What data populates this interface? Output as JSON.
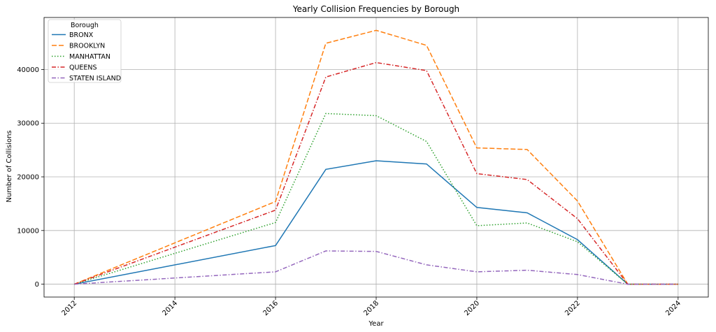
{
  "chart_data": {
    "type": "line",
    "title": "Yearly Collision Frequencies by Borough",
    "xlabel": "Year",
    "ylabel": "Number of Collisions",
    "xlim": [
      2011.4,
      2024.6
    ],
    "ylim": [
      -2400,
      49700
    ],
    "x_ticks": [
      2012,
      2014,
      2016,
      2018,
      2020,
      2022,
      2024
    ],
    "y_ticks": [
      0,
      10000,
      20000,
      30000,
      40000
    ],
    "x_tick_rotation": 45,
    "grid": true,
    "legend": {
      "title": "Borough",
      "placement": "top-left"
    },
    "x": [
      2012,
      2016,
      2017,
      2018,
      2019,
      2020,
      2021,
      2022,
      2023,
      2024
    ],
    "series": [
      {
        "name": "BRONX",
        "color": "#1f77b4",
        "dash": "solid",
        "values": [
          0,
          7200,
          21400,
          23000,
          22400,
          14300,
          13300,
          8300,
          0,
          0
        ]
      },
      {
        "name": "BROOKLYN",
        "color": "#ff7f0e",
        "dash": "dashed",
        "values": [
          0,
          15400,
          44900,
          47300,
          44500,
          25400,
          25100,
          15500,
          0,
          0
        ]
      },
      {
        "name": "MANHATTAN",
        "color": "#2ca02c",
        "dash": "dotted",
        "values": [
          0,
          11500,
          31800,
          31400,
          26600,
          10900,
          11400,
          7900,
          0,
          0
        ]
      },
      {
        "name": "QUEENS",
        "color": "#d62728",
        "dash": "dashdot",
        "values": [
          0,
          13800,
          38600,
          41300,
          39800,
          20600,
          19500,
          12200,
          0,
          0
        ]
      },
      {
        "name": "STATEN ISLAND",
        "color": "#9467bd",
        "dash": "dashdot",
        "values": [
          0,
          2300,
          6200,
          6100,
          3600,
          2300,
          2600,
          1800,
          0,
          0
        ]
      }
    ]
  }
}
